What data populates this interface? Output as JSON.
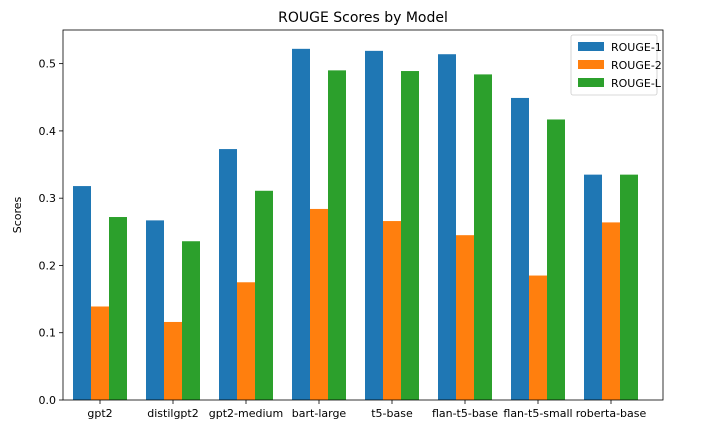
{
  "chart_data": {
    "type": "bar",
    "title": "ROUGE Scores by Model",
    "xlabel": "",
    "ylabel": "Scores",
    "categories": [
      "gpt2",
      "distilgpt2",
      "gpt2-medium",
      "bart-large",
      "t5-base",
      "flan-t5-base",
      "flan-t5-small",
      "roberta-base"
    ],
    "series": [
      {
        "name": "ROUGE-1",
        "color": "#1f77b4",
        "values": [
          0.318,
          0.267,
          0.373,
          0.522,
          0.519,
          0.514,
          0.449,
          0.335
        ]
      },
      {
        "name": "ROUGE-2",
        "color": "#ff7f0e",
        "values": [
          0.139,
          0.116,
          0.175,
          0.284,
          0.266,
          0.245,
          0.185,
          0.264
        ]
      },
      {
        "name": "ROUGE-L",
        "color": "#2ca02c",
        "values": [
          0.272,
          0.236,
          0.311,
          0.49,
          0.489,
          0.484,
          0.417,
          0.335
        ]
      }
    ],
    "ylim": [
      0,
      0.55
    ],
    "yticks": [
      "0.0",
      "0.1",
      "0.2",
      "0.3",
      "0.4",
      "0.5"
    ],
    "grid": false,
    "legend_position": "top-right"
  }
}
